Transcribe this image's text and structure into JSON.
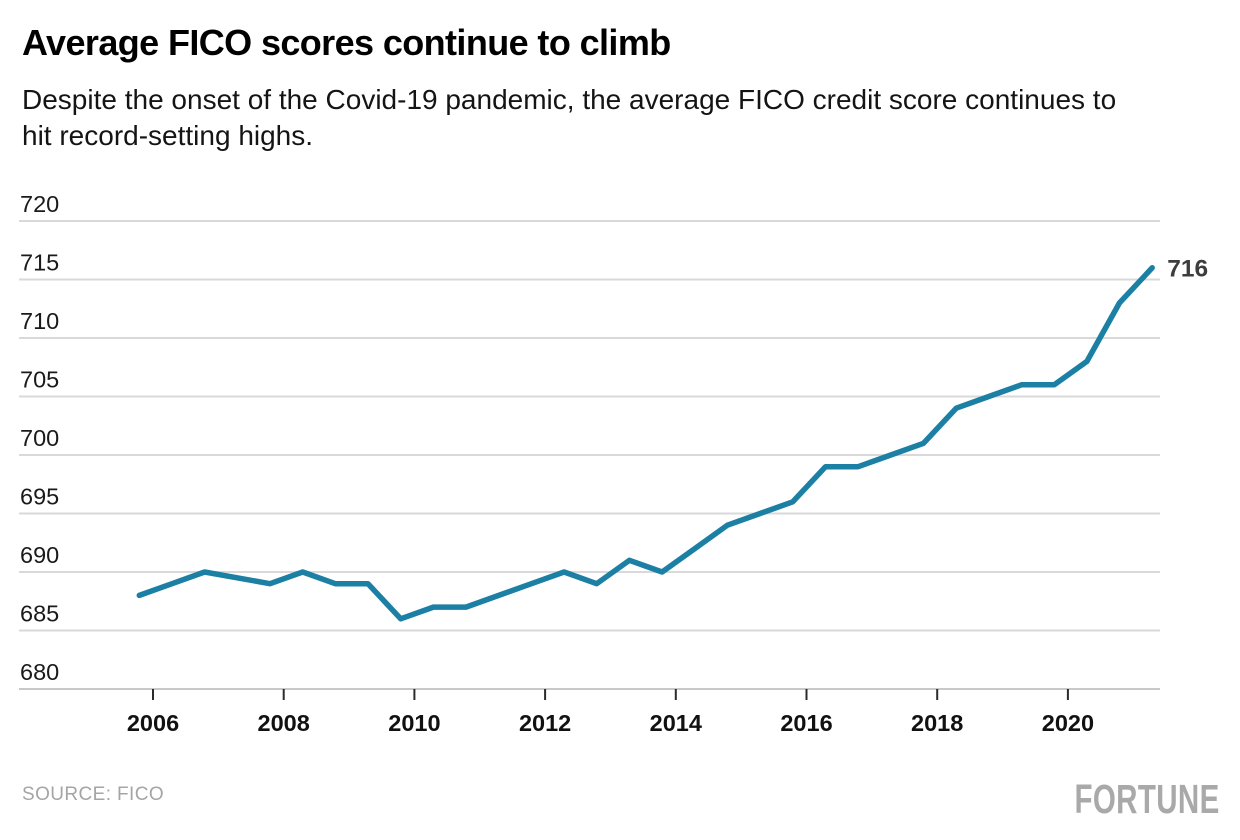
{
  "header": {
    "title": "Average FICO scores continue to climb",
    "subtitle": "Despite the onset of the Covid-19 pandemic, the average FICO credit score continues to hit record-setting highs.",
    "subtitle_lines": [
      "Despite the onset of the Covid-19 pandemic, the average FICO credit score continues to",
      "hit record-setting highs."
    ]
  },
  "chart_data": {
    "type": "line",
    "title": "Average FICO scores continue to climb",
    "subtitle": "Despite the onset of the Covid-19 pandemic, the average FICO credit score continues to hit record-setting highs.",
    "xlabel": "",
    "ylabel": "",
    "ylim": [
      680,
      720
    ],
    "x_ticks": [
      2006,
      2008,
      2010,
      2012,
      2014,
      2016,
      2018,
      2020
    ],
    "y_ticks": [
      680,
      685,
      690,
      695,
      700,
      705,
      710,
      715,
      720
    ],
    "grid": true,
    "legend_position": "none",
    "end_label": "716",
    "series": [
      {
        "name": "Average FICO score",
        "color": "#1b80a4",
        "points": [
          [
            2005.79,
            688
          ],
          [
            2006.29,
            689
          ],
          [
            2006.79,
            690
          ],
          [
            2007.79,
            689
          ],
          [
            2008.29,
            690
          ],
          [
            2008.79,
            689
          ],
          [
            2009.29,
            689
          ],
          [
            2009.79,
            686
          ],
          [
            2010.29,
            687
          ],
          [
            2010.79,
            687
          ],
          [
            2011.29,
            688
          ],
          [
            2011.79,
            689
          ],
          [
            2012.29,
            690
          ],
          [
            2012.79,
            689
          ],
          [
            2013.29,
            691
          ],
          [
            2013.79,
            690
          ],
          [
            2014.29,
            692
          ],
          [
            2014.79,
            694
          ],
          [
            2015.29,
            695
          ],
          [
            2015.79,
            696
          ],
          [
            2016.29,
            699
          ],
          [
            2016.79,
            699
          ],
          [
            2017.29,
            700
          ],
          [
            2017.79,
            701
          ],
          [
            2018.29,
            704
          ],
          [
            2018.79,
            705
          ],
          [
            2019.29,
            706
          ],
          [
            2019.79,
            706
          ],
          [
            2020.29,
            708
          ],
          [
            2020.79,
            713
          ],
          [
            2021.29,
            716
          ]
        ]
      }
    ],
    "colors": {
      "line": "#1b80a4",
      "grid": "#d9d9d9",
      "axis_line": "#c8c8c8",
      "tick_mark": "#2b2b2b",
      "x_tick_label": "#111111",
      "y_tick_label": "#1a1a1a",
      "end_label": "#3d3d3d"
    }
  },
  "footer": {
    "source_label": "SOURCE: FICO",
    "brand": "FORTUNE"
  }
}
